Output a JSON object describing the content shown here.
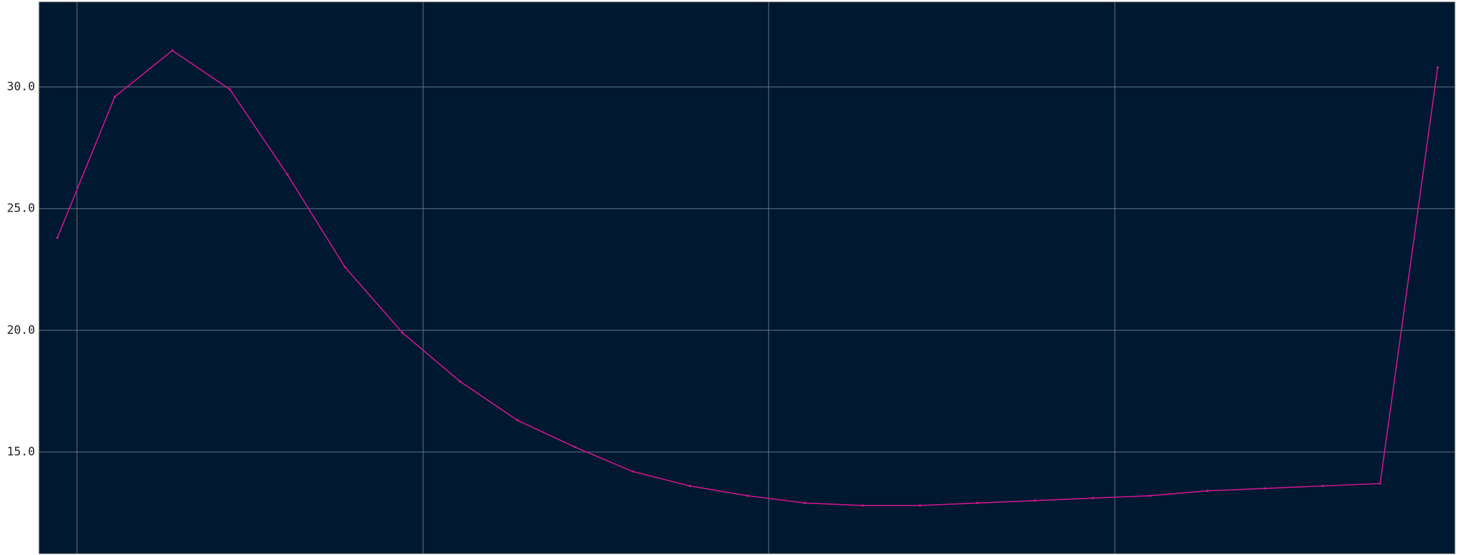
{
  "chart_data": {
    "type": "line",
    "categories": [
      null,
      null,
      null,
      null,
      null,
      null,
      null,
      null,
      null,
      null,
      null,
      null,
      null,
      null,
      null,
      null,
      null,
      null,
      null,
      null,
      null,
      null,
      null,
      null,
      null
    ],
    "series": [
      {
        "color": "#d1168f",
        "values": [
          23.8,
          29.6,
          31.5,
          29.9,
          26.4,
          22.6,
          19.9,
          17.9,
          16.3,
          15.2,
          14.2,
          13.6,
          13.2,
          12.9,
          12.8,
          12.8,
          12.9,
          13.0,
          13.1,
          13.2,
          13.4,
          13.5,
          13.6,
          13.7,
          30.8
        ]
      }
    ],
    "ylim": [
      10.82,
      33.49
    ],
    "yticks": [
      {
        "value": 15,
        "label": "15.0"
      },
      {
        "value": 20,
        "label": "20.0"
      },
      {
        "value": 25,
        "label": "25.0"
      },
      {
        "value": 30,
        "label": "30.0"
      }
    ],
    "grid": true,
    "background": "#001830"
  }
}
